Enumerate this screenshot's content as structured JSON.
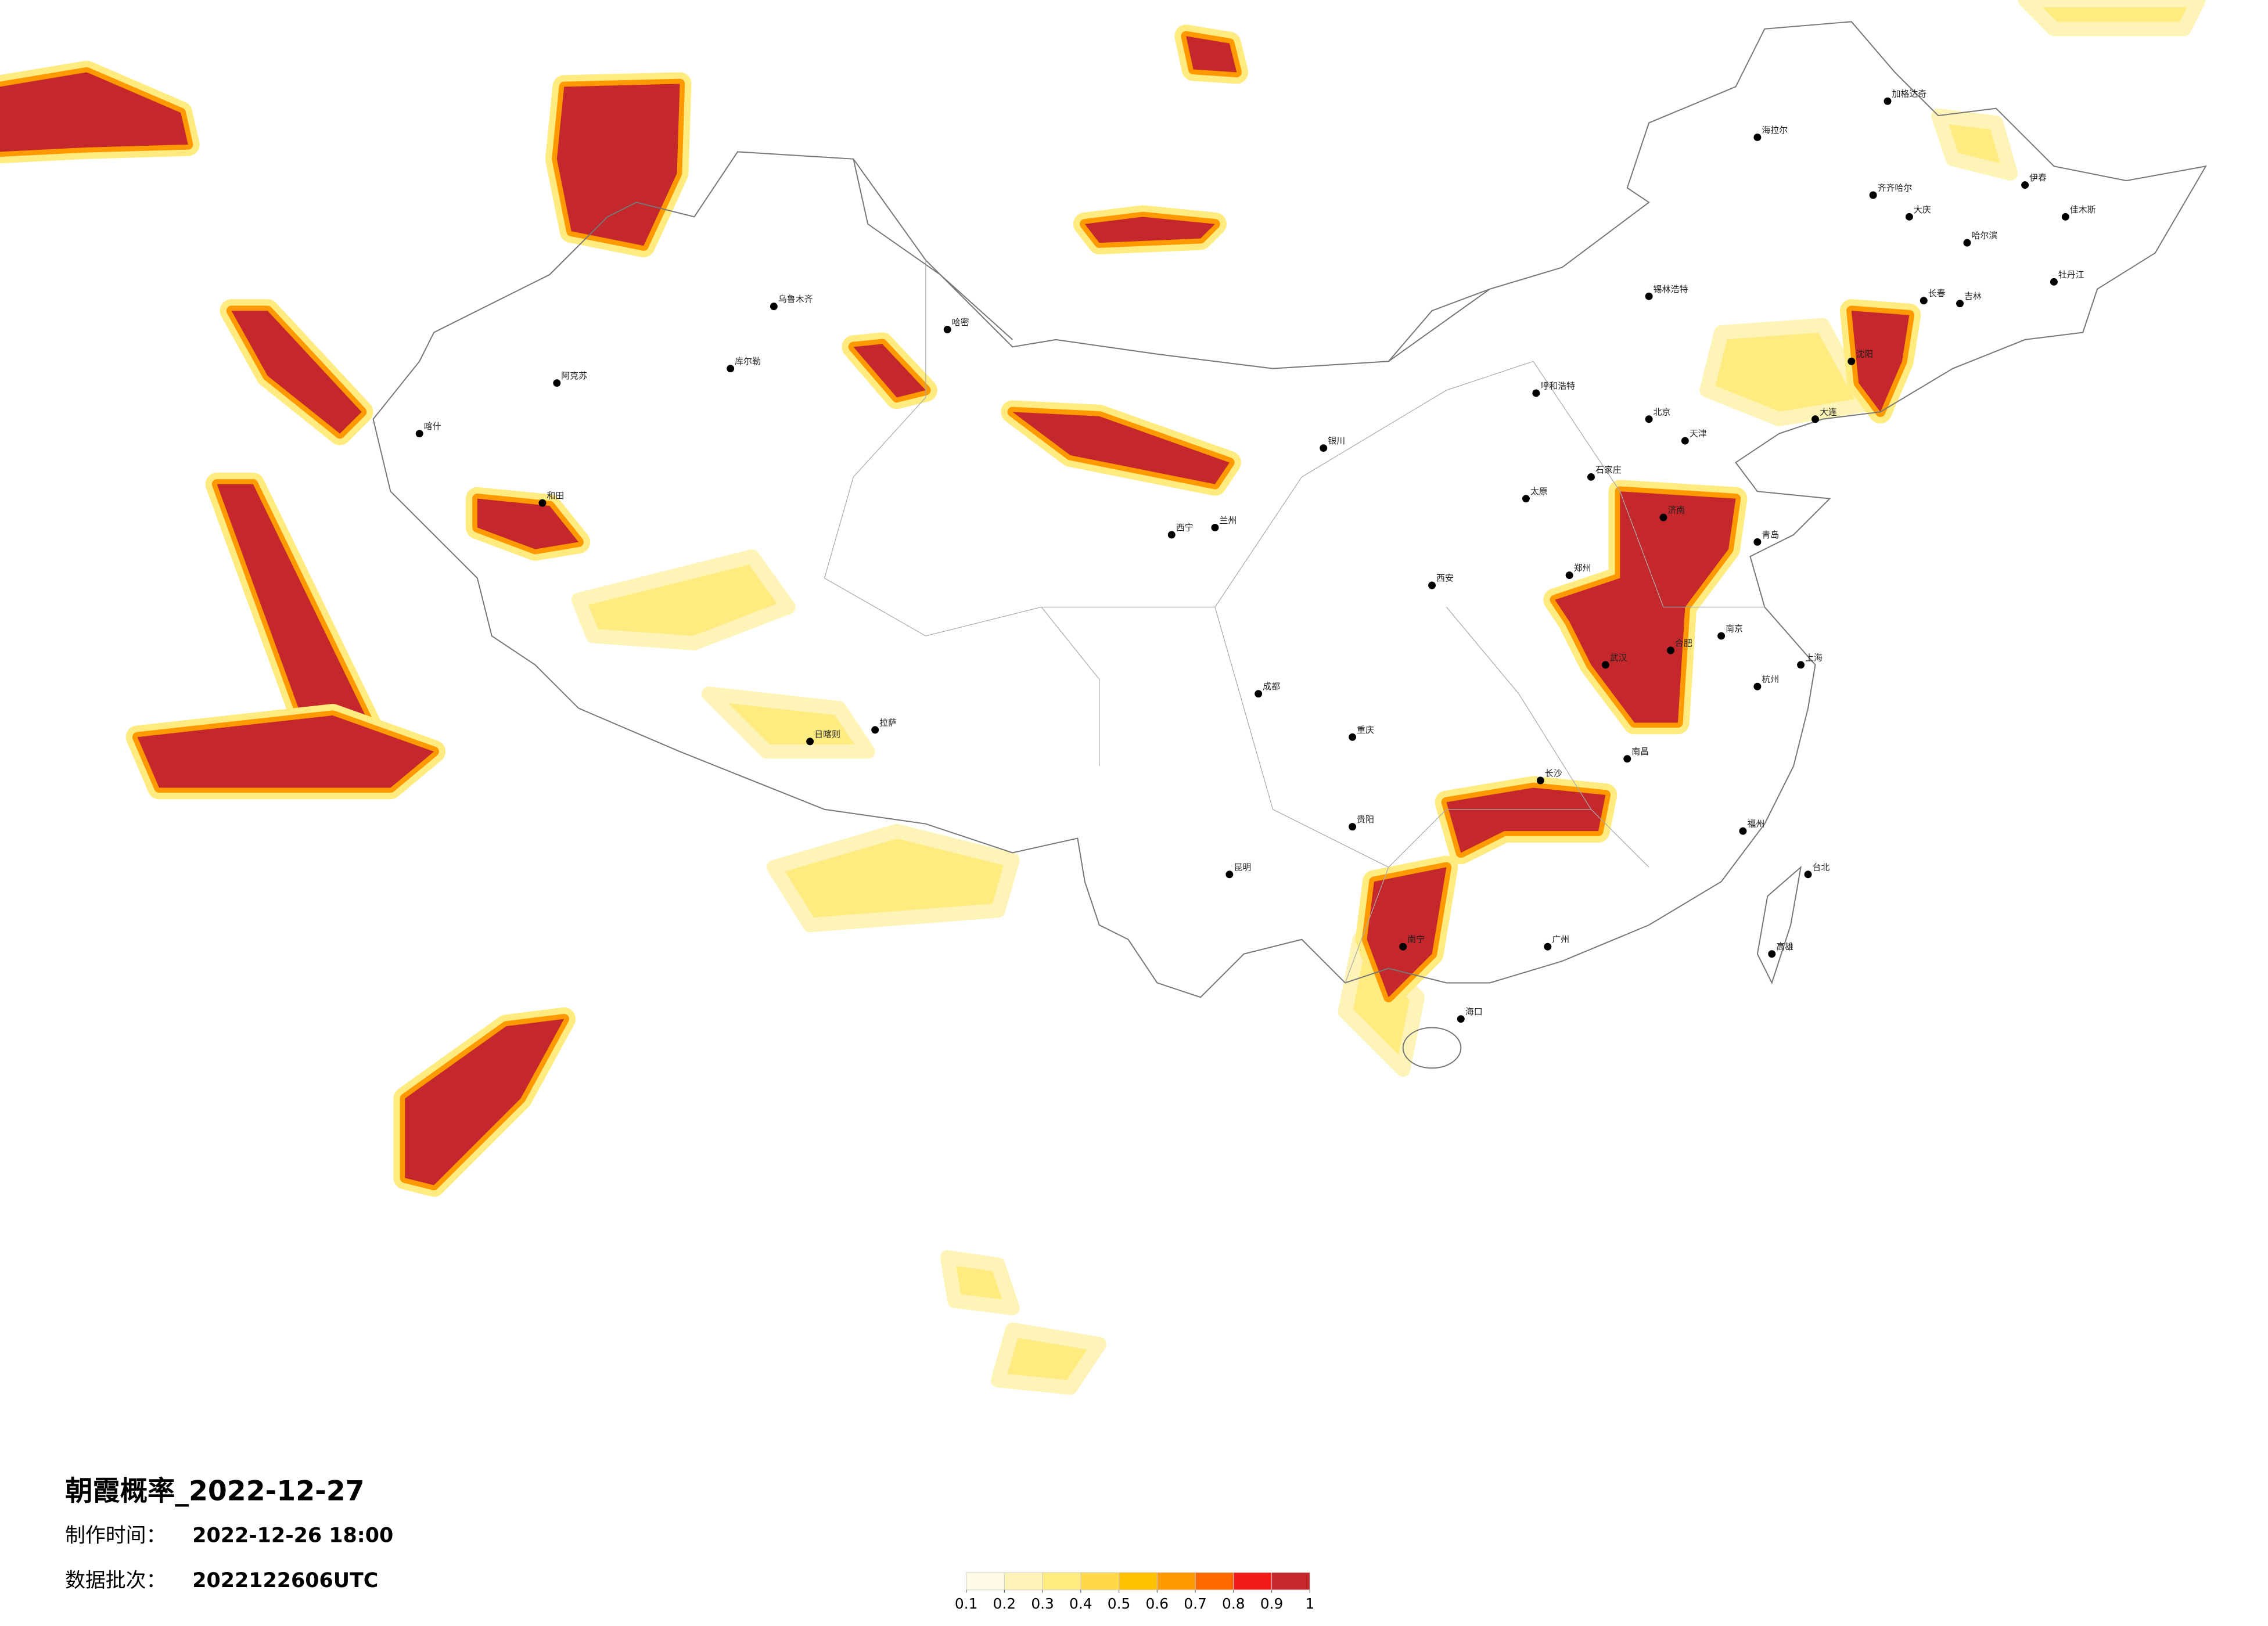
{
  "title": "朝霞概率_2022-12-27",
  "made_time": {
    "label": "制作时间：",
    "value": "2022-12-26 18:00"
  },
  "batch": {
    "label": "数据批次：",
    "value": "2022122606UTC"
  },
  "colorbar": {
    "ticks": [
      0.1,
      0.2,
      0.3,
      0.4,
      0.5,
      0.6,
      0.7,
      0.8,
      0.9,
      1
    ],
    "colors": [
      "#fffbe8",
      "#fff4b8",
      "#ffeb80",
      "#ffd84a",
      "#ffc000",
      "#ff9900",
      "#ff6a00",
      "#f21a1a",
      "#c4282c"
    ]
  },
  "cities": [
    "海拉尔",
    "加格达奇",
    "齐齐哈尔",
    "大庆",
    "哈尔滨",
    "伊春",
    "佳木斯",
    "牡丹江",
    "长春",
    "吉林",
    "锡林浩特",
    "呼和浩特",
    "北京",
    "天津",
    "石家庄",
    "太原",
    "济南",
    "郑州",
    "西安",
    "兰州",
    "西宁",
    "银川",
    "乌鲁木齐",
    "哈密",
    "库尔勒",
    "阿克苏",
    "和田",
    "喀什",
    "拉萨",
    "日喀则",
    "成都",
    "重庆",
    "贵阳",
    "昆明",
    "南宁",
    "广州",
    "长沙",
    "武汉",
    "南京",
    "上海",
    "杭州",
    "福州",
    "海口",
    "台北",
    "高雄",
    "南昌",
    "合肥",
    "沈阳",
    "大连",
    "青岛"
  ]
}
